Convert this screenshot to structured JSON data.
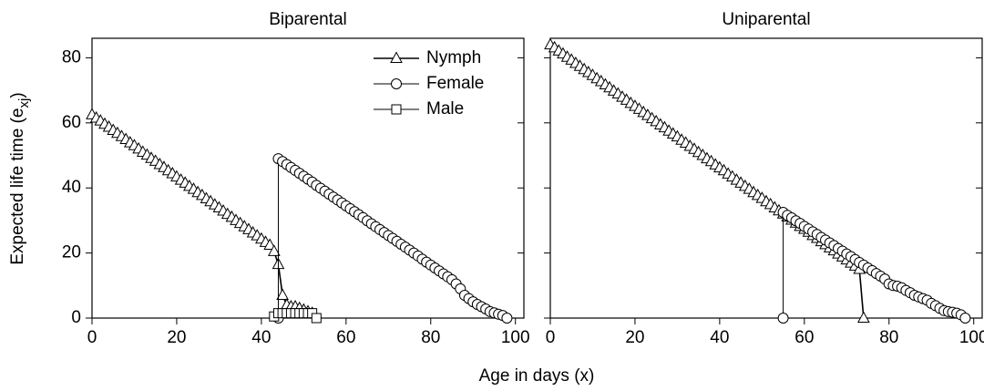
{
  "chart_data": [
    {
      "type": "line",
      "title": "Biparental",
      "ylabel": {
        "text": "Expected life time (e",
        "subscript": "xj",
        "end": ")"
      },
      "xlabel": "Age in days (x)",
      "xlim": [
        0,
        102
      ],
      "ylim": [
        0,
        86
      ],
      "xticks": [
        0,
        20,
        40,
        60,
        80,
        100
      ],
      "yticks": [
        0,
        20,
        40,
        60,
        80
      ],
      "legend": "upper right",
      "series": [
        {
          "name": "Nymph",
          "color": "#000000",
          "marker": "triangle",
          "x": [
            0,
            1,
            2,
            3,
            4,
            5,
            6,
            7,
            8,
            9,
            10,
            11,
            12,
            13,
            14,
            15,
            16,
            17,
            18,
            19,
            20,
            21,
            22,
            23,
            24,
            25,
            26,
            27,
            28,
            29,
            30,
            31,
            32,
            33,
            34,
            35,
            36,
            37,
            38,
            39,
            40,
            41,
            42,
            43,
            44,
            45,
            46,
            47,
            48,
            49,
            50,
            51,
            52
          ],
          "values": [
            62.5,
            61.5,
            60.6,
            59.6,
            58.7,
            57.7,
            56.8,
            55.8,
            54.9,
            53.9,
            53.0,
            52.0,
            51.0,
            50.1,
            49.1,
            48.2,
            47.2,
            46.3,
            45.3,
            44.4,
            43.4,
            42.4,
            41.5,
            40.5,
            39.6,
            38.6,
            37.7,
            36.7,
            35.8,
            34.8,
            33.9,
            32.9,
            31.9,
            31.0,
            30.0,
            29.1,
            28.1,
            27.2,
            26.2,
            25.3,
            24.3,
            23.3,
            22.4,
            20.5,
            16.5,
            7,
            4,
            3.5,
            3.5,
            3,
            2.5,
            2,
            1.5
          ]
        },
        {
          "name": "Female",
          "color": "#000000",
          "marker": "circle",
          "x": [
            44,
            44,
            45,
            46,
            47,
            48,
            49,
            50,
            51,
            52,
            53,
            54,
            55,
            56,
            57,
            58,
            59,
            60,
            61,
            62,
            63,
            64,
            65,
            66,
            67,
            68,
            69,
            70,
            71,
            72,
            73,
            74,
            75,
            76,
            77,
            78,
            79,
            80,
            81,
            82,
            83,
            84,
            85,
            86,
            87,
            88,
            89,
            90,
            91,
            92,
            93,
            94,
            95,
            96,
            97,
            98
          ],
          "values": [
            0,
            49,
            48.1,
            47.2,
            46.3,
            45.4,
            44.5,
            43.6,
            42.7,
            41.8,
            40.8,
            39.9,
            39.0,
            38.1,
            37.2,
            36.3,
            35.4,
            34.5,
            33.6,
            32.7,
            31.8,
            30.9,
            29.9,
            29.0,
            28.1,
            27.2,
            26.3,
            25.4,
            24.5,
            23.6,
            22.7,
            21.8,
            20.9,
            20.0,
            19.1,
            18.1,
            17.2,
            16.3,
            15.4,
            14.5,
            13.6,
            12.7,
            11.8,
            10.5,
            9,
            7,
            6,
            5,
            4.2,
            3.5,
            2.8,
            2,
            1.6,
            1.2,
            0.8,
            0
          ]
        },
        {
          "name": "Male",
          "color": "#000000",
          "marker": "square",
          "x": [
            43,
            44,
            45,
            46,
            47,
            48,
            49,
            50,
            51,
            52,
            53
          ],
          "values": [
            0.5,
            1.5,
            1.5,
            1.5,
            1.5,
            1.5,
            1.5,
            1.5,
            1.5,
            1.5,
            0
          ]
        }
      ]
    },
    {
      "type": "line",
      "title": "Uniparental",
      "xlim": [
        0,
        102
      ],
      "ylim": [
        0,
        86
      ],
      "xticks": [
        0,
        20,
        40,
        60,
        80,
        100
      ],
      "yticks": [
        0,
        20,
        40,
        60,
        80
      ],
      "series": [
        {
          "color": "#000000",
          "marker": "triangle",
          "x": [
            0,
            1,
            2,
            3,
            4,
            5,
            6,
            7,
            8,
            9,
            10,
            11,
            12,
            13,
            14,
            15,
            16,
            17,
            18,
            19,
            20,
            21,
            22,
            23,
            24,
            25,
            26,
            27,
            28,
            29,
            30,
            31,
            32,
            33,
            34,
            35,
            36,
            37,
            38,
            39,
            40,
            41,
            42,
            43,
            44,
            45,
            46,
            47,
            48,
            49,
            50,
            51,
            52,
            53,
            54,
            55,
            56,
            57,
            58,
            59,
            60,
            61,
            62,
            63,
            64,
            65,
            66,
            67,
            68,
            69,
            70,
            71,
            72,
            73,
            74
          ],
          "values": [
            84,
            83.1,
            82.1,
            81.2,
            80.2,
            79.3,
            78.3,
            77.4,
            76.4,
            75.5,
            74.6,
            73.6,
            72.7,
            71.7,
            70.8,
            69.8,
            68.9,
            67.9,
            67.0,
            66.0,
            65.1,
            64.2,
            63.2,
            62.3,
            61.3,
            60.4,
            59.4,
            58.5,
            57.5,
            56.6,
            55.7,
            54.7,
            53.8,
            52.8,
            51.9,
            50.9,
            50.0,
            49.0,
            48.1,
            47.1,
            46.2,
            45.3,
            44.3,
            43.4,
            42.4,
            41.5,
            40.5,
            39.6,
            38.6,
            37.7,
            36.8,
            35.8,
            34.9,
            33.9,
            33.0,
            32.0,
            31.1,
            30.1,
            29.2,
            28.2,
            27.3,
            26.4,
            25.4,
            24.5,
            23.5,
            22.6,
            21.6,
            20.7,
            19.7,
            18.8,
            17.9,
            16.9,
            16.0,
            15.0,
            0
          ]
        },
        {
          "color": "#000000",
          "marker": "circle",
          "x": [
            55,
            55,
            56,
            57,
            58,
            59,
            60,
            61,
            62,
            63,
            64,
            65,
            66,
            67,
            68,
            69,
            70,
            71,
            72,
            73,
            74,
            75,
            76,
            77,
            78,
            79,
            80,
            81,
            82,
            83,
            84,
            85,
            86,
            87,
            88,
            89,
            90,
            91,
            92,
            93,
            94,
            95,
            96,
            97,
            98
          ],
          "values": [
            0,
            32.5,
            31.6,
            30.8,
            29.9,
            29.1,
            28.2,
            27.4,
            26.5,
            25.7,
            24.8,
            24.0,
            23.1,
            22.3,
            21.4,
            20.6,
            19.7,
            18.9,
            18.0,
            17.1,
            16.3,
            15.4,
            14.6,
            13.7,
            12.9,
            12.0,
            10.5,
            10,
            9.8,
            9.3,
            8.5,
            7.8,
            7,
            6.5,
            6,
            5.5,
            4.5,
            3.8,
            3,
            2.3,
            2,
            1.8,
            1.5,
            1,
            0
          ]
        }
      ]
    }
  ]
}
